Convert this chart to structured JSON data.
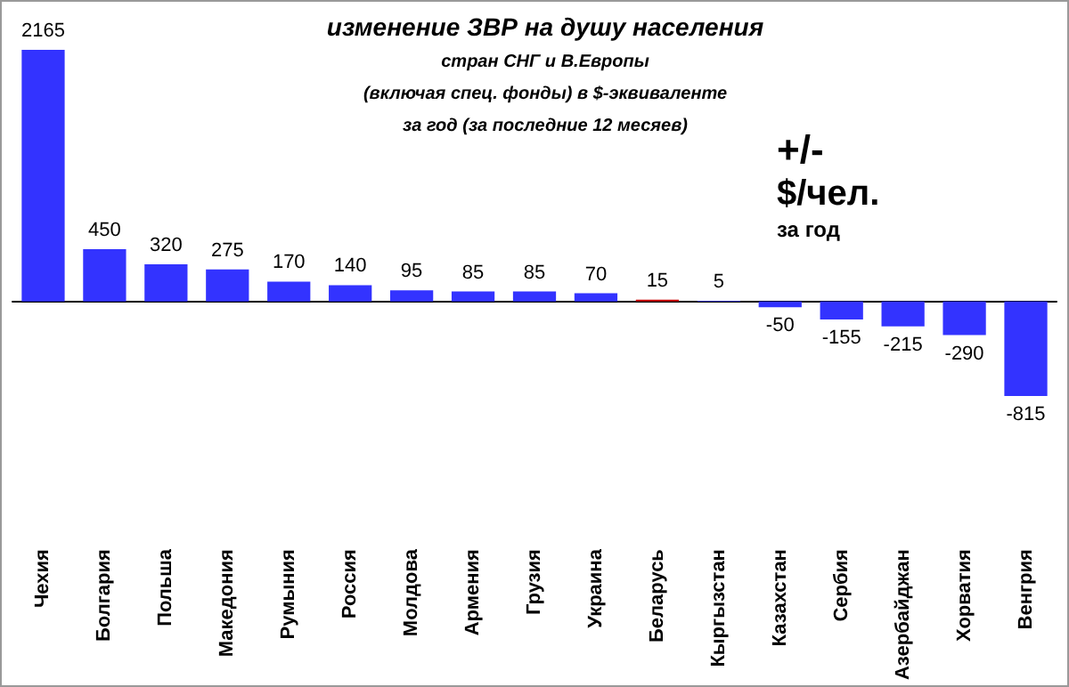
{
  "chart_data": {
    "type": "bar",
    "title": "изменение ЗВР на душу населения",
    "subtitle": "стран СНГ и В.Европы\n(включая спец. фонды) в $-эквиваленте\nза год (за последние 12 месяев)",
    "annotations": [
      "+/-",
      "$/чел.",
      "за год"
    ],
    "categories": [
      "Чехия",
      "Болгария",
      "Польша",
      "Македония",
      "Румыния",
      "Россия",
      "Молдова",
      "Армения",
      "Грузия",
      "Украина",
      "Беларусь",
      "Кыргызстан",
      "Казахстан",
      "Сербия",
      "Азербайджан",
      "Хорватия",
      "Венгрия"
    ],
    "values": [
      2165,
      450,
      320,
      275,
      170,
      140,
      95,
      85,
      85,
      70,
      15,
      5,
      -50,
      -155,
      -215,
      -290,
      -815
    ],
    "colors": [
      "#3333ff",
      "#3333ff",
      "#3333ff",
      "#3333ff",
      "#3333ff",
      "#3333ff",
      "#3333ff",
      "#3333ff",
      "#3333ff",
      "#3333ff",
      "#cc0000",
      "#3333ff",
      "#3333ff",
      "#3333ff",
      "#3333ff",
      "#3333ff",
      "#3333ff"
    ],
    "data_labels": true
  }
}
